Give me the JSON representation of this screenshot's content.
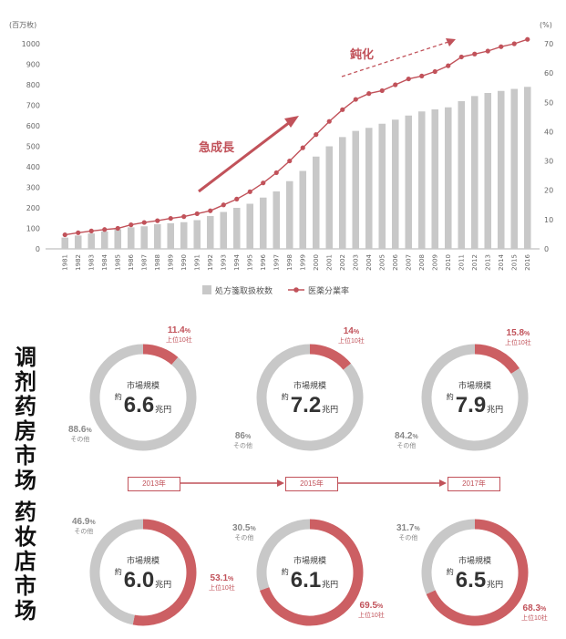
{
  "chart_data": [
    {
      "type": "bar+line",
      "title": "",
      "left_axis_unit": "(百万枚)",
      "right_axis_unit": "(%)",
      "y_left_ticks": [
        0,
        100,
        200,
        300,
        400,
        500,
        600,
        700,
        800,
        900,
        1000
      ],
      "y_right_ticks": [
        0,
        10,
        20,
        30,
        40,
        50,
        60,
        70
      ],
      "ylim_left": [
        0,
        1000
      ],
      "ylim_right": [
        0,
        70
      ],
      "categories": [
        "1981",
        "1982",
        "1983",
        "1984",
        "1985",
        "1986",
        "1987",
        "1988",
        "1989",
        "1990",
        "1991",
        "1992",
        "1993",
        "1994",
        "1995",
        "1996",
        "1997",
        "1998",
        "1999",
        "2000",
        "2001",
        "2002",
        "2003",
        "2004",
        "2005",
        "2006",
        "2007",
        "2008",
        "2009",
        "2010",
        "2011",
        "2012",
        "2013",
        "2014",
        "2015",
        "2016"
      ],
      "series": [
        {
          "name": "処方箋取扱枚数",
          "type": "bar",
          "axis": "left",
          "color": "#c8c8c8",
          "values": [
            55,
            65,
            75,
            85,
            95,
            105,
            110,
            120,
            125,
            130,
            140,
            160,
            180,
            200,
            220,
            250,
            280,
            330,
            380,
            450,
            500,
            545,
            575,
            590,
            610,
            630,
            650,
            670,
            680,
            690,
            720,
            745,
            760,
            770,
            780,
            790
          ]
        },
        {
          "name": "医薬分業率",
          "type": "line",
          "axis": "right",
          "color": "#c1525a",
          "values": [
            4.8,
            5.5,
            6.1,
            6.6,
            7.0,
            8.2,
            9.0,
            9.6,
            10.4,
            11.0,
            12.0,
            13.0,
            15.0,
            17.0,
            19.5,
            22.5,
            26.0,
            30.0,
            34.5,
            39.0,
            43.5,
            47.5,
            51.0,
            53.0,
            54.0,
            56.0,
            58.0,
            59.0,
            60.5,
            62.5,
            65.5,
            66.5,
            67.5,
            69.0,
            70.0,
            71.5
          ]
        }
      ],
      "annotations": {
        "rapid_growth": "急成長",
        "slowdown": "鈍化"
      },
      "legend_position": "bottom",
      "grid": false
    },
    {
      "type": "pie",
      "group": "调剂药房市场",
      "items": [
        {
          "year": "2013年",
          "market_label": "市場規模",
          "prefix": "約",
          "value": "6.6",
          "unit": "兆円",
          "slices": [
            {
              "label": "上位10社",
              "value": 11.4,
              "color": "#cc5f63"
            },
            {
              "label": "その他",
              "value": 88.6,
              "color": "#c8c8c8"
            }
          ]
        },
        {
          "year": "2015年",
          "market_label": "市場規模",
          "prefix": "約",
          "value": "7.2",
          "unit": "兆円",
          "slices": [
            {
              "label": "上位10社",
              "value": 14.0,
              "color": "#cc5f63"
            },
            {
              "label": "その他",
              "value": 86.0,
              "color": "#c8c8c8"
            }
          ]
        },
        {
          "year": "2017年",
          "market_label": "市場規模",
          "prefix": "約",
          "value": "7.9",
          "unit": "兆円",
          "slices": [
            {
              "label": "上位10社",
              "value": 15.8,
              "color": "#cc5f63"
            },
            {
              "label": "その他",
              "value": 84.2,
              "color": "#c8c8c8"
            }
          ]
        }
      ]
    },
    {
      "type": "pie",
      "group": "药妆店市场",
      "items": [
        {
          "year": "2013年",
          "market_label": "市場規模",
          "prefix": "約",
          "value": "6.0",
          "unit": "兆円",
          "slices": [
            {
              "label": "上位10社",
              "value": 53.1,
              "color": "#cc5f63"
            },
            {
              "label": "その他",
              "value": 46.9,
              "color": "#c8c8c8"
            }
          ]
        },
        {
          "year": "2015年",
          "market_label": "市場規模",
          "prefix": "約",
          "value": "6.1",
          "unit": "兆円",
          "slices": [
            {
              "label": "上位10社",
              "value": 69.5,
              "color": "#cc5f63"
            },
            {
              "label": "その他",
              "value": 30.5,
              "color": "#c8c8c8"
            }
          ]
        },
        {
          "year": "2017年",
          "market_label": "市場規模",
          "prefix": "約",
          "value": "6.5",
          "unit": "兆円",
          "slices": [
            {
              "label": "上位10社",
              "value": 68.3,
              "color": "#cc5f63"
            },
            {
              "label": "その他",
              "value": 31.7,
              "color": "#c8c8c8"
            }
          ]
        }
      ]
    }
  ],
  "labels": {
    "pharmacy_title": "调剂药房市场",
    "drugstore_title": "药妆店市场",
    "years": [
      "2013年",
      "2015年",
      "2017年"
    ]
  },
  "colors": {
    "accent": "#c1525a",
    "bar": "#c8c8c8",
    "other": "#c8c8c8",
    "top10": "#cc5f63"
  }
}
